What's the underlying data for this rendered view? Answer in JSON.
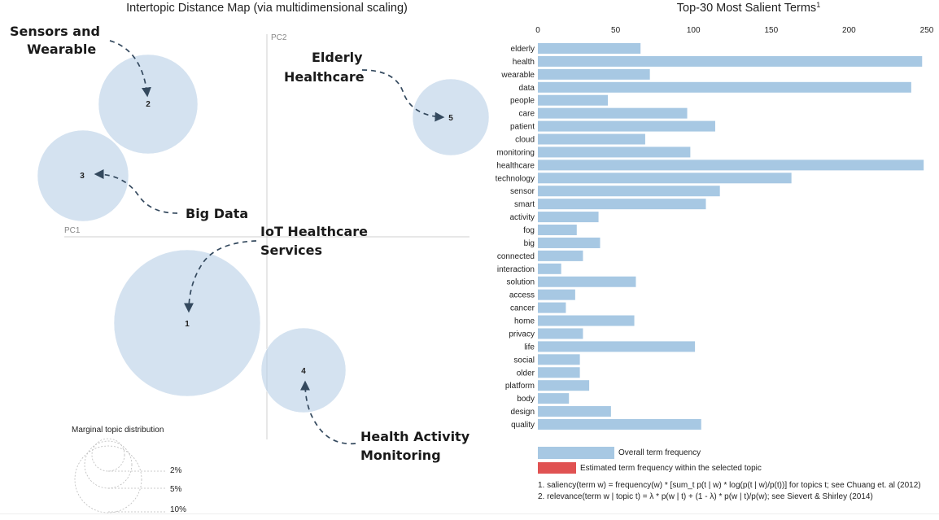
{
  "idm": {
    "title": "Intertopic Distance Map (via multidimensional scaling)",
    "pc1": "PC1",
    "pc2": "PC2",
    "marginal_title": "Marginal topic distribution",
    "marginal_sizes": [
      "2%",
      "5%",
      "10%"
    ],
    "topics": [
      {
        "id": "1",
        "label": "1"
      },
      {
        "id": "2",
        "label": "2"
      },
      {
        "id": "3",
        "label": "3"
      },
      {
        "id": "4",
        "label": "4"
      },
      {
        "id": "5",
        "label": "5"
      }
    ]
  },
  "annotations": {
    "sensors_line1": "Sensors and",
    "sensors_line2": "Wearable",
    "elderly_line1": "Elderly",
    "elderly_line2": "Healthcare",
    "bigdata": "Big Data",
    "iot_line1": "IoT Healthcare",
    "iot_line2": "Services",
    "activity_line1": "Health Activity",
    "activity_line2": "Monitoring"
  },
  "terms_chart": {
    "title": "Top-30 Most Salient Terms",
    "title_sup": "1",
    "legend_overall": "Overall term frequency",
    "legend_estimated": "Estimated term frequency within the selected topic",
    "footnote1": "1. saliency(term w) = frequency(w) * [sum_t p(t | w) * log(p(t | w)/p(t))] for topics t; see Chuang et. al (2012)",
    "footnote2": "2. relevance(term w | topic t) = λ * p(w | t) + (1 - λ) * p(w | t)/p(w); see Sievert & Shirley (2014)",
    "overall_color": "#a7c8e3",
    "estimated_color": "#e05252"
  },
  "chart_data": {
    "type": "bar",
    "orientation": "horizontal",
    "title": "Top-30 Most Salient Terms",
    "categories": [
      "elderly",
      "health",
      "wearable",
      "data",
      "people",
      "care",
      "patient",
      "cloud",
      "monitoring",
      "healthcare",
      "technology",
      "sensor",
      "smart",
      "activity",
      "fog",
      "big",
      "connected",
      "interaction",
      "solution",
      "access",
      "cancer",
      "home",
      "privacy",
      "life",
      "social",
      "older",
      "platform",
      "body",
      "design",
      "quality"
    ],
    "series": [
      {
        "name": "Overall term frequency",
        "values": [
          66,
          247,
          72,
          240,
          45,
          96,
          114,
          69,
          98,
          248,
          163,
          117,
          108,
          39,
          25,
          40,
          29,
          15,
          63,
          24,
          18,
          62,
          29,
          101,
          27,
          27,
          33,
          20,
          47,
          105
        ]
      }
    ],
    "xlim": [
      0,
      250
    ],
    "xticks": [
      0,
      50,
      100,
      150,
      200,
      250
    ],
    "legend": "bottom",
    "grid": false
  }
}
